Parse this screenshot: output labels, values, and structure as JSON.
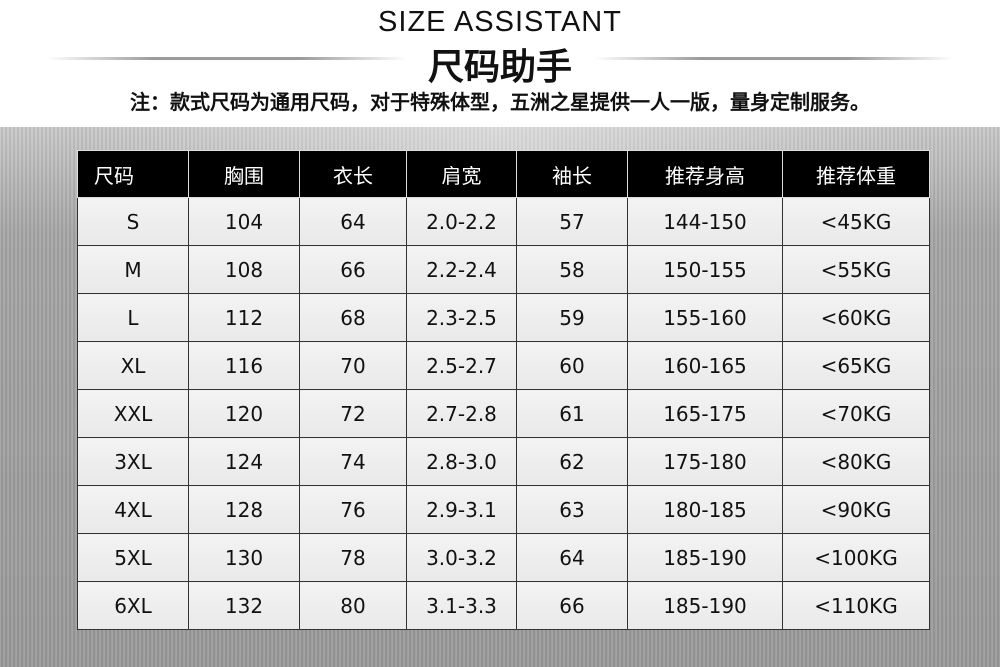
{
  "header": {
    "title_en": "SIZE ASSISTANT",
    "title_cn": "尺码助手",
    "note": "注：款式尺码为通用尺码，对于特殊体型，五洲之星提供一人一版，量身定制服务。"
  },
  "table": {
    "columns": [
      "尺码",
      "胸围",
      "衣长",
      "肩宽",
      "袖长",
      "推荐身高",
      "推荐体重"
    ],
    "rows": [
      [
        "S",
        "104",
        "64",
        "2.0-2.2",
        "57",
        "144-150",
        "<45KG"
      ],
      [
        "M",
        "108",
        "66",
        "2.2-2.4",
        "58",
        "150-155",
        "<55KG"
      ],
      [
        "L",
        "112",
        "68",
        "2.3-2.5",
        "59",
        "155-160",
        "<60KG"
      ],
      [
        "XL",
        "116",
        "70",
        "2.5-2.7",
        "60",
        "160-165",
        "<65KG"
      ],
      [
        "XXL",
        "120",
        "72",
        "2.7-2.8",
        "61",
        "165-175",
        "<70KG"
      ],
      [
        "3XL",
        "124",
        "74",
        "2.8-3.0",
        "62",
        "175-180",
        "<80KG"
      ],
      [
        "4XL",
        "128",
        "76",
        "2.9-3.1",
        "63",
        "180-185",
        "<90KG"
      ],
      [
        "5XL",
        "130",
        "78",
        "3.0-3.2",
        "64",
        "185-190",
        "<100KG"
      ],
      [
        "6XL",
        "132",
        "80",
        "3.1-3.3",
        "66",
        "185-190",
        "<110KG"
      ]
    ]
  },
  "colors": {
    "header_bg": "#000000",
    "header_text": "#ffffff",
    "cell_bg": "#eeeeee",
    "background": "#a0a0a0"
  }
}
